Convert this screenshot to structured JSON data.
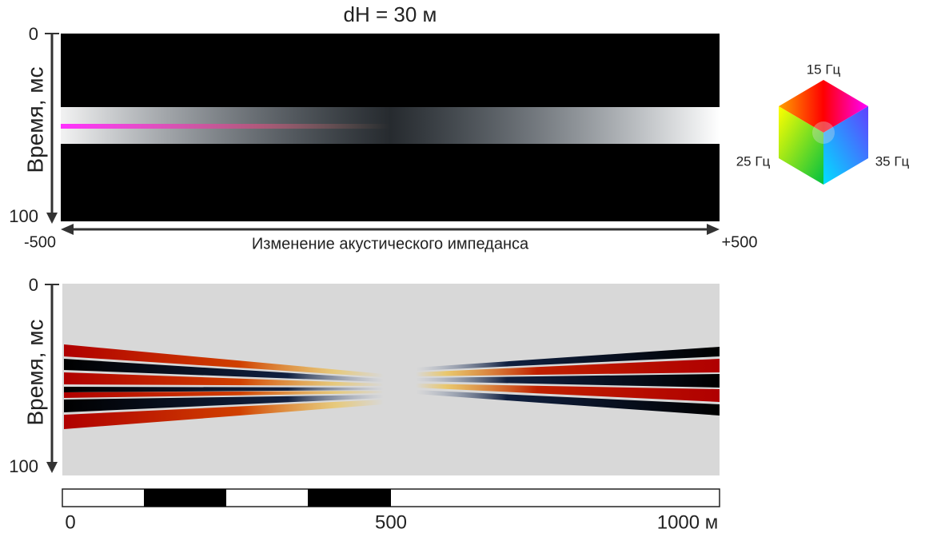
{
  "title": "dH = 30 м",
  "top_panel": {
    "y_axis": {
      "label": "Время, мс",
      "ticks": [
        "0",
        "100"
      ]
    },
    "x_axis": {
      "label": "Изменение акустического импеданса",
      "ticks": [
        "-500",
        "+500"
      ]
    }
  },
  "legend": {
    "labels": [
      "15 Гц",
      "25 Гц",
      "35 Гц"
    ]
  },
  "bottom_panel": {
    "y_axis": {
      "label": "Время, мс",
      "ticks": [
        "0",
        "100"
      ]
    }
  },
  "scale_bar": {
    "ticks": [
      "0",
      "500",
      "1000 м"
    ]
  }
}
